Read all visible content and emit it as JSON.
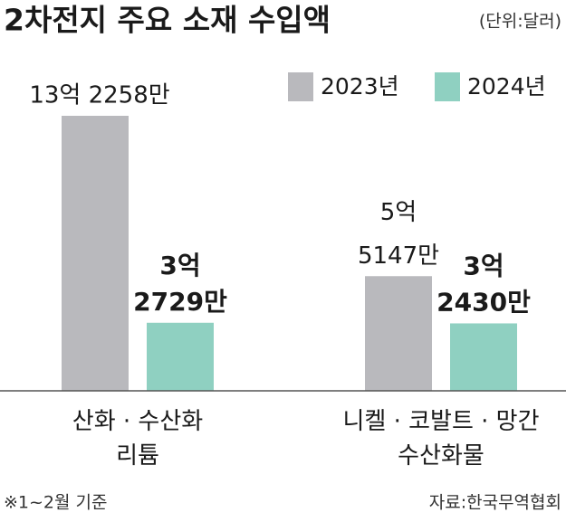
{
  "chart_data": {
    "type": "bar",
    "title": "2차전지 주요 소재 수입액",
    "subtitle": "(단위:달러)",
    "note": "※1~2월 기준",
    "source": "자료:한국무역협회",
    "categories": [
      "산화 · 수산화\n리튬",
      "니켈 · 코발트 · 망간\n수산화물"
    ],
    "series": [
      {
        "name": "2023년",
        "color": "#b9b9bd",
        "values": [
          1322580000,
          551470000
        ],
        "value_labels": [
          "13억 2258만",
          "5억\n5147만"
        ]
      },
      {
        "name": "2024년",
        "color": "#8fd0c1",
        "values": [
          327290000,
          324300000
        ],
        "value_labels": [
          "3억\n2729만",
          "3억\n2430만"
        ]
      }
    ]
  }
}
